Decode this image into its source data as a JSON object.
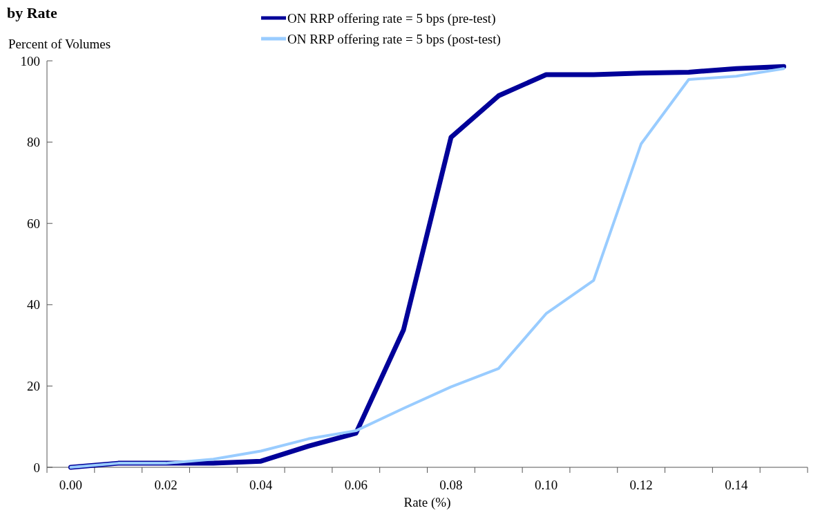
{
  "chart_data": {
    "type": "line",
    "title": "by Rate",
    "ylabel": "Percent of Volumes",
    "xlabel": "Rate (%)",
    "categories": [
      "0.00",
      null,
      "0.02",
      null,
      "0.04",
      null,
      "0.06",
      null,
      "0.08",
      null,
      "0.10",
      null,
      "0.12",
      null,
      "0.14",
      null
    ],
    "series": [
      {
        "name": "ON RRP offering rate = 5 bps (pre-test)",
        "color": "#000099",
        "values": [
          0,
          1,
          1,
          1,
          1.5,
          5.2,
          8.4,
          33.8,
          81.2,
          91.4,
          96.6,
          96.6,
          97,
          97.2,
          98.1,
          98.6
        ]
      },
      {
        "name": "ON RRP offering rate = 5 bps (post-test)",
        "color": "#99ccff",
        "values": [
          0,
          1,
          1,
          2,
          4,
          7,
          9,
          14.5,
          19.8,
          24.3,
          37.8,
          46,
          79.6,
          95.4,
          96.2,
          98.1
        ]
      }
    ],
    "ylim": [
      0,
      100
    ],
    "yticks": [
      0,
      20,
      40,
      60,
      80,
      100
    ],
    "grid": false,
    "legend": "top",
    "marker": "none",
    "line_style": "solid"
  }
}
